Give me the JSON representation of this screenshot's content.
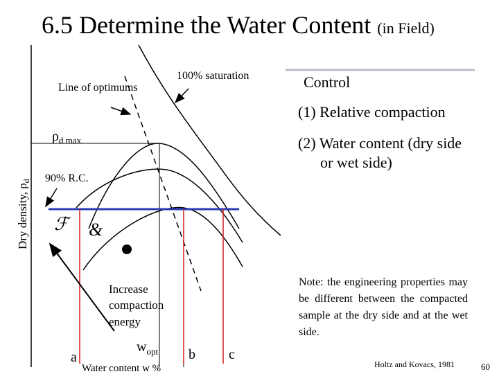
{
  "title": {
    "main": "6.5 Determine the Water Content",
    "suffix": "(in Field)"
  },
  "diagram": {
    "line_of_optimums": "Line of optimums",
    "saturation": "100% saturation",
    "rho_max": {
      "symbol": "ρ",
      "subscript": "d max"
    },
    "y_axis_label": {
      "text": "Dry density, ρ",
      "subscript": "d"
    },
    "rc_label": "90% R.C.",
    "symbol_dry": "ℱ",
    "symbol_wet": "&",
    "energy_label": [
      "Increase",
      "compaction",
      "energy"
    ],
    "w_opt": {
      "symbol": "w",
      "subscript": "opt"
    },
    "x_axis_label": "Water content w %",
    "points": [
      "a",
      "b",
      "c"
    ]
  },
  "control": {
    "heading": "Control",
    "items": [
      "(1) Relative compaction",
      "(2) Water content (dry side",
      "or wet side)"
    ]
  },
  "note": "Note: the engineering properties may be different between the compacted sample at the dry side and at the wet side.",
  "source": "Holtz and Kovacs, 1981",
  "page_number": "60"
}
